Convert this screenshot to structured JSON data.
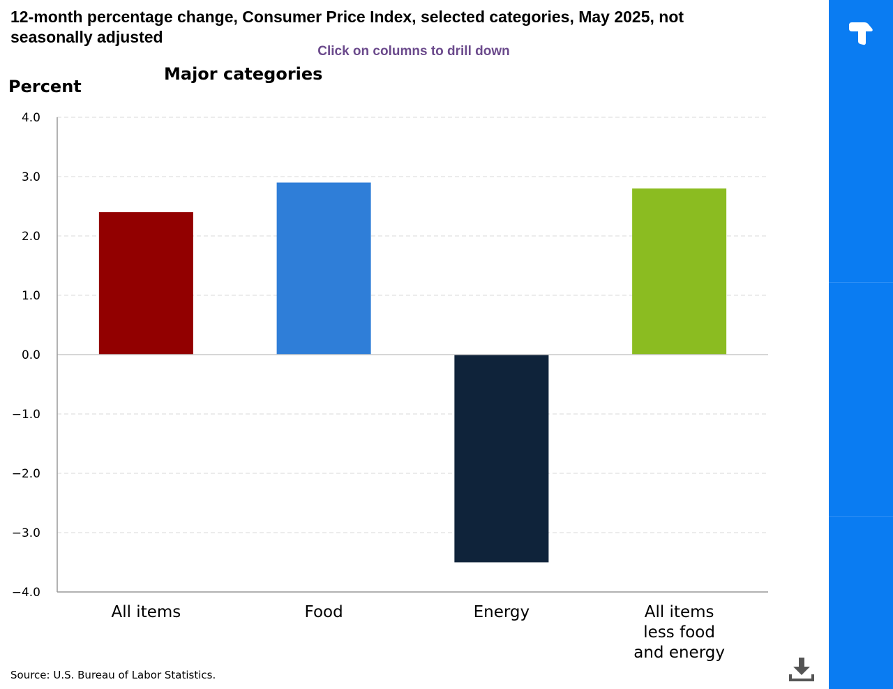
{
  "header": {
    "title": "12-month percentage change, Consumer Price Index, selected categories, May 2025, not seasonally adjusted",
    "drill_hint": "Click on columns to drill down",
    "subtitle": "Major categories"
  },
  "footer": {
    "source": "Source: U.S. Bureau of Labor Statistics."
  },
  "icons": {
    "download": "download-icon",
    "logo": "app-logo-icon"
  },
  "colors": {
    "drill_hint": "#6b4a8c",
    "side_panel": "#0a7cf2"
  },
  "chart_data": {
    "type": "bar",
    "title": "12-month percentage change, Consumer Price Index, selected categories, May 2025, not seasonally adjusted",
    "subtitle": "Major categories",
    "xlabel": "",
    "ylabel": "Percent",
    "ylim": [
      -4.0,
      4.0
    ],
    "yticks": [
      4.0,
      3.0,
      2.0,
      1.0,
      0.0,
      -1.0,
      -2.0,
      -3.0,
      -4.0
    ],
    "ytick_labels": [
      "4.0",
      "3.0",
      "2.0",
      "1.0",
      "0.0",
      "−1.0",
      "−2.0",
      "−3.0",
      "−4.0"
    ],
    "grid": true,
    "legend": "none",
    "categories": [
      [
        "All items"
      ],
      [
        "Food"
      ],
      [
        "Energy"
      ],
      [
        "All items",
        "less food",
        "and energy"
      ]
    ],
    "values": [
      2.4,
      2.9,
      -3.5,
      2.8
    ],
    "bar_colors": [
      "#920000",
      "#2f7ed8",
      "#0f233a",
      "#8bbc21"
    ]
  }
}
